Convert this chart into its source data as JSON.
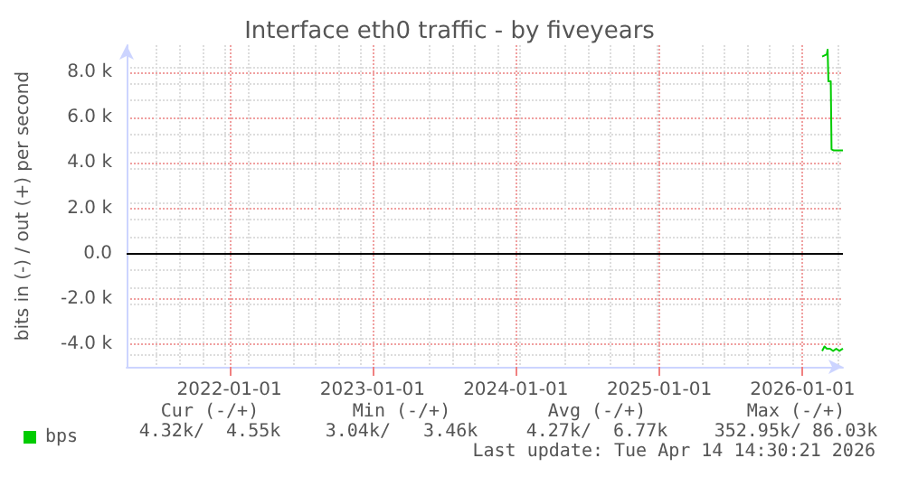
{
  "chart_data": {
    "type": "line",
    "title": "Interface eth0 traffic - by fiveyears",
    "ylabel": "bits in (-) / out (+) per second",
    "xlim": [
      "2021-04-14",
      "2026-04-14"
    ],
    "xticks": [
      "2022-01-01",
      "2023-01-01",
      "2024-01-01",
      "2025-01-01",
      "2026-01-01"
    ],
    "ylim": [
      -5000,
      9200
    ],
    "yticks": [
      {
        "value": -4000,
        "label": "-4.0 k"
      },
      {
        "value": -2000,
        "label": "-2.0 k"
      },
      {
        "value": 0,
        "label": "0.0"
      },
      {
        "value": 2000,
        "label": "2.0 k"
      },
      {
        "value": 4000,
        "label": "4.0 k"
      },
      {
        "value": 6000,
        "label": "6.0 k"
      },
      {
        "value": 8000,
        "label": "8.0 k"
      }
    ],
    "series": [
      {
        "name": "bps",
        "color": "#00cc00",
        "x": [
          "2026-02-20",
          "2026-03-04",
          "2026-03-06",
          "2026-03-08",
          "2026-03-14",
          "2026-03-16",
          "2026-03-22",
          "2026-04-14"
        ],
        "values": [
          8700,
          8800,
          9000,
          7600,
          7600,
          4600,
          4550,
          4550
        ]
      },
      {
        "color": "#00cc00",
        "x": [
          "2026-02-20",
          "2026-02-26",
          "2026-03-04",
          "2026-03-12",
          "2026-03-20",
          "2026-03-28",
          "2026-04-05",
          "2026-04-14"
        ],
        "values": [
          -4300,
          -4100,
          -4200,
          -4200,
          -4300,
          -4200,
          -4300,
          -4200
        ]
      }
    ],
    "ref_lines": [
      {
        "axis": "y",
        "value": 0,
        "color": "#000000"
      }
    ],
    "grid": true,
    "legend": "bottom left",
    "line_style": "solid",
    "marker": "none",
    "annotations": [
      "Cur (-/+)",
      "Min (-/+)",
      "Avg (-/+)",
      "Max (-/+)",
      "4.32k/  4.55k",
      "3.04k/   3.46k",
      "4.27k/  6.77k",
      "352.95k/ 86.03k",
      "Last update: Tue Apr 14 14:30:21 2026"
    ]
  }
}
